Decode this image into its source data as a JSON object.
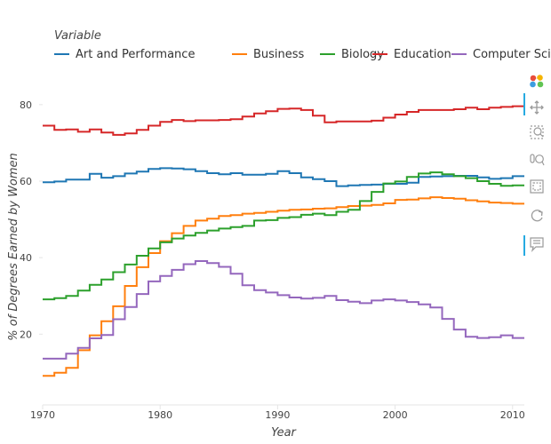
{
  "legend": {
    "title": "Variable"
  },
  "toolbar": {
    "tools": [
      {
        "name": "bokeh-logo-icon"
      },
      {
        "name": "pan-icon"
      },
      {
        "name": "box-zoom-icon"
      },
      {
        "name": "wheel-zoom-icon"
      },
      {
        "name": "lasso-select-icon"
      },
      {
        "name": "box-select-icon"
      },
      {
        "name": "reset-icon"
      },
      {
        "name": "hover-icon"
      }
    ]
  },
  "chart_data": {
    "type": "line",
    "line_style": "step",
    "xlabel": "Year",
    "ylabel": "% of Degrees Earned by Women",
    "xlim": [
      1970,
      2011
    ],
    "ylim": [
      1.5,
      86
    ],
    "x_ticks": [
      "1970",
      "1980",
      "1990",
      "2000",
      "2010"
    ],
    "y_ticks": [
      "20",
      "40",
      "60",
      "80"
    ],
    "grid": false,
    "legend_position": "top",
    "x": [
      1970,
      1971,
      1972,
      1973,
      1974,
      1975,
      1976,
      1977,
      1978,
      1979,
      1980,
      1981,
      1982,
      1983,
      1984,
      1985,
      1986,
      1987,
      1988,
      1989,
      1990,
      1991,
      1992,
      1993,
      1994,
      1995,
      1996,
      1997,
      1998,
      1999,
      2000,
      2001,
      2002,
      2003,
      2004,
      2005,
      2006,
      2007,
      2008,
      2009,
      2010,
      2011
    ],
    "series": [
      {
        "name": "Art and Performance",
        "color": "#1f77b4",
        "values": [
          59.7,
          59.9,
          60.4,
          60.4,
          61.9,
          60.9,
          61.3,
          62.0,
          62.5,
          63.2,
          63.4,
          63.3,
          63.1,
          62.6,
          62.1,
          61.8,
          62.1,
          61.7,
          61.7,
          61.9,
          62.6,
          62.1,
          61.0,
          60.5,
          60.0,
          58.7,
          58.9,
          59.0,
          59.1,
          59.3,
          59.3,
          59.6,
          61.1,
          61.2,
          61.3,
          61.4,
          61.4,
          61.0,
          60.6,
          60.8,
          61.3,
          61.3
        ],
        "colors_note": "blue"
      },
      {
        "name": "Business",
        "color": "#ff7f0e",
        "values": [
          9.1,
          9.9,
          11.2,
          15.8,
          19.7,
          23.4,
          27.3,
          32.6,
          37.5,
          41.2,
          44.3,
          46.4,
          48.3,
          49.7,
          50.2,
          50.9,
          51.1,
          51.5,
          51.7,
          52.0,
          52.3,
          52.5,
          52.6,
          52.8,
          52.9,
          53.2,
          53.5,
          53.6,
          53.8,
          54.2,
          55.1,
          55.2,
          55.5,
          55.8,
          55.6,
          55.4,
          55.0,
          54.7,
          54.4,
          54.3,
          54.1,
          54.1
        ]
      },
      {
        "name": "Biology",
        "color": "#2ca02c",
        "values": [
          29.1,
          29.4,
          30.0,
          31.4,
          32.9,
          34.3,
          36.2,
          38.2,
          40.5,
          42.4,
          44.0,
          45.0,
          45.8,
          46.5,
          47.1,
          47.6,
          48.0,
          48.3,
          49.7,
          49.8,
          50.4,
          50.6,
          51.2,
          51.5,
          51.1,
          52.0,
          52.5,
          54.8,
          57.2,
          59.4,
          59.9,
          61.1,
          62.0,
          62.3,
          61.8,
          61.3,
          60.8,
          60.0,
          59.3,
          58.8,
          58.9,
          58.9
        ]
      },
      {
        "name": "Education",
        "color": "#d62728",
        "values": [
          74.5,
          73.4,
          73.5,
          72.9,
          73.5,
          72.7,
          72.1,
          72.5,
          73.4,
          74.5,
          75.5,
          76.0,
          75.7,
          75.9,
          75.9,
          76.0,
          76.2,
          76.9,
          77.7,
          78.3,
          78.9,
          79.0,
          78.6,
          77.1,
          75.4,
          75.6,
          75.6,
          75.6,
          75.8,
          76.6,
          77.4,
          78.1,
          78.6,
          78.6,
          78.6,
          78.8,
          79.2,
          78.8,
          79.2,
          79.4,
          79.6,
          79.6
        ]
      },
      {
        "name": "Computer Science",
        "color": "#9467bd",
        "values": [
          13.6,
          13.6,
          14.9,
          16.4,
          18.9,
          19.8,
          23.9,
          27.1,
          30.5,
          33.8,
          35.2,
          36.8,
          38.3,
          39.1,
          38.6,
          37.6,
          35.8,
          32.8,
          31.5,
          30.9,
          30.2,
          29.6,
          29.3,
          29.5,
          30.0,
          28.9,
          28.5,
          28.1,
          28.8,
          29.1,
          28.8,
          28.4,
          27.8,
          27.0,
          24.0,
          21.2,
          19.3,
          19.0,
          19.2,
          19.7,
          19.0,
          19.0
        ]
      }
    ]
  }
}
